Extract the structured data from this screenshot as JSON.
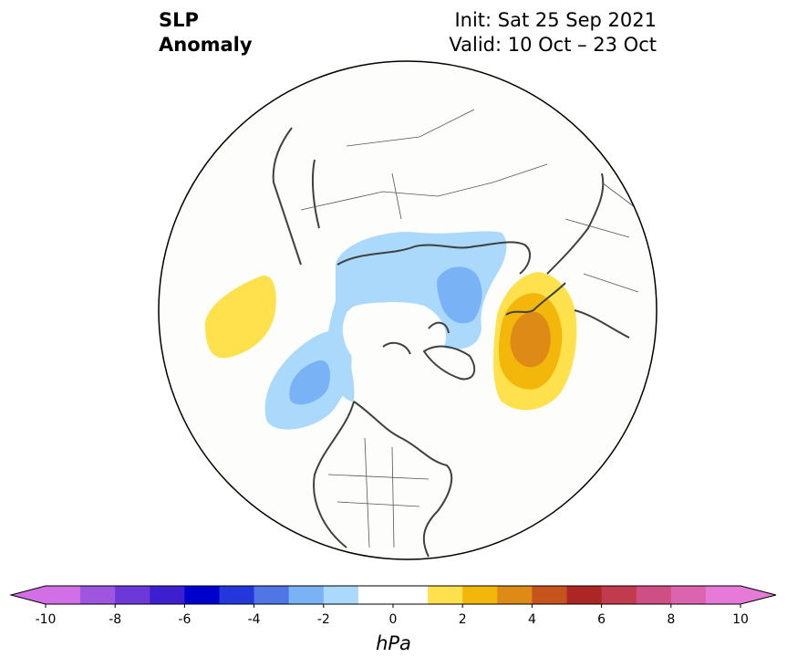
{
  "title": {
    "variable_line1": "SLP",
    "variable_line2": "Anomaly",
    "init": "Init: Sat 25 Sep 2021",
    "valid": "Valid: 10 Oct – 23 Oct"
  },
  "map": {
    "projection": "north-polar-stereographic",
    "background_color": "#fdfdfb",
    "coastline_color": "#404040",
    "anomalies": [
      {
        "region": "North Pacific (Aleutian / Gulf of Alaska)",
        "sign": "positive",
        "max_hPa": 2,
        "color": "#ffe14e"
      },
      {
        "region": "Northeast Pacific / western Canada",
        "sign": "negative",
        "min_hPa": -4,
        "color": "#79b2f5"
      },
      {
        "region": "Northern Eurasia / Kara-Laptev Seas",
        "sign": "negative",
        "min_hPa": -4,
        "color": "#79b2f5"
      },
      {
        "region": "North Atlantic / Iceland - Norwegian Sea",
        "sign": "positive",
        "max_hPa": 4,
        "color": "#de8a16"
      }
    ]
  },
  "colorbar": {
    "unit": "hPa",
    "tick_labels": [
      "-10",
      "-8",
      "-6",
      "-4",
      "-2",
      "0",
      "2",
      "4",
      "6",
      "8",
      "10"
    ],
    "levels": [
      -10,
      -9,
      -8,
      -7,
      -6,
      -5,
      -4,
      -3,
      -2,
      -1,
      1,
      2,
      3,
      4,
      5,
      6,
      7,
      8,
      9,
      10
    ],
    "under_color": "#d36fe6",
    "over_color": "#e67ad9",
    "colors": [
      "#d36fe6",
      "#9e55e0",
      "#6c38d8",
      "#3e1fd0",
      "#0000cc",
      "#2437dc",
      "#5076e6",
      "#79b2f5",
      "#aad9fc",
      "#ffffff",
      "#ffe14e",
      "#f3b60b",
      "#de8a16",
      "#c4541c",
      "#ad2626",
      "#c23a4d",
      "#cf4f84",
      "#dc64af",
      "#e67ad9"
    ]
  }
}
